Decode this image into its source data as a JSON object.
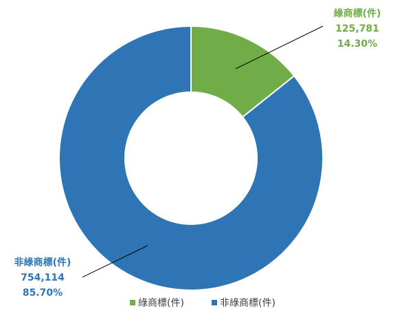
{
  "chart_data": {
    "type": "pie",
    "donut": true,
    "series": [
      {
        "name": "綠商標(件)",
        "value": 125781,
        "value_label": "125,781",
        "percent_label": "14.30%",
        "percent": 14.3,
        "color": "#70AD47"
      },
      {
        "name": "非綠商標(件)",
        "value": 754114,
        "value_label": "754,114",
        "percent_label": "85.70%",
        "percent": 85.7,
        "color": "#2E75B6"
      }
    ],
    "legend": {
      "placement": "bottom",
      "items": [
        "綠商標(件)",
        "非綠商標(件)"
      ]
    }
  }
}
